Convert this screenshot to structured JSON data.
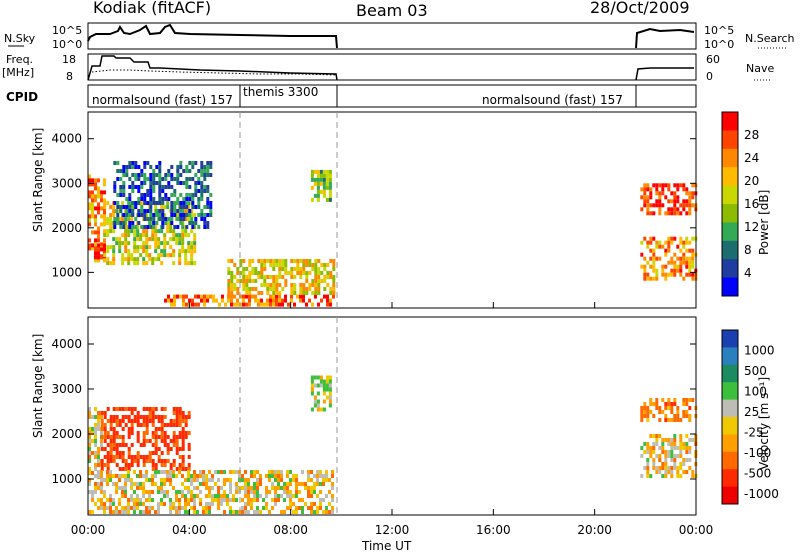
{
  "header": {
    "station": "Kodiak (fitACF)",
    "beam": "Beam 03",
    "date": "28/Oct/2009"
  },
  "small_panels": {
    "nsky_label": "N.Sky",
    "nsky_ticks": [
      "10^5",
      "10^0"
    ],
    "nsearch_label": "N.Search",
    "nsearch_ticks": [
      "10^5",
      "10^0"
    ],
    "freq_label_1": "Freq.",
    "freq_label_2": "[MHz]",
    "freq_ticks": [
      "18",
      "8"
    ],
    "nave_label": "Nave",
    "nave_ticks": [
      "60",
      "0"
    ],
    "cpid_label": "CPID",
    "cpid_segments": [
      {
        "name": "normalsound (fast) 157",
        "start_h": 0.0,
        "end_h": 6.0
      },
      {
        "name": "themis 3300",
        "start_h": 6.0,
        "end_h": 9.75
      },
      {
        "name": "normalsound (fast) 157",
        "start_h": 9.75,
        "end_h": 21.75
      }
    ]
  },
  "chart_data": [
    {
      "type": "heatmap",
      "panel": "power",
      "ylabel": "Slant Range [km]",
      "xlabel": "Time UT",
      "xlim": [
        0,
        24
      ],
      "ylim": [
        200,
        4600
      ],
      "x_ticks": [
        "00:00",
        "04:00",
        "08:00",
        "12:00",
        "16:00",
        "20:00",
        "00:00"
      ],
      "y_ticks": [
        1000,
        2000,
        3000,
        4000
      ],
      "colorbar_label": "Power [dB]",
      "colorbar_ticks": [
        "28",
        "24",
        "20",
        "16",
        "12",
        "8",
        "4"
      ],
      "colorbar_colors": [
        "#ff0000",
        "#ff4400",
        "#ff8800",
        "#ffbb00",
        "#c8d800",
        "#8cbb00",
        "#33aa55",
        "#1c6e6e",
        "#1f3ca0",
        "#0000ff"
      ],
      "data_gap": [
        9.75,
        21.75
      ],
      "features": [
        {
          "t_start": 0.0,
          "t_end": 0.6,
          "r_min": 1250,
          "r_max": 3200,
          "power_db": 22
        },
        {
          "t_start": 0.0,
          "t_end": 0.6,
          "r_min": 1350,
          "r_max": 1650,
          "power_db": 28
        },
        {
          "t_start": 0.6,
          "t_end": 4.2,
          "r_min": 1200,
          "r_max": 2600,
          "power_db": 16
        },
        {
          "t_start": 1.0,
          "t_end": 4.8,
          "r_min": 2000,
          "r_max": 3500,
          "power_db": 6
        },
        {
          "t_start": 3.0,
          "t_end": 9.7,
          "r_min": 250,
          "r_max": 500,
          "power_db": 24
        },
        {
          "t_start": 5.5,
          "t_end": 9.7,
          "r_min": 500,
          "r_max": 1300,
          "power_db": 18
        },
        {
          "t_start": 8.8,
          "t_end": 9.6,
          "r_min": 2600,
          "r_max": 3300,
          "power_db": 14
        },
        {
          "t_start": 21.8,
          "t_end": 24.0,
          "r_min": 2300,
          "r_max": 3000,
          "power_db": 27
        },
        {
          "t_start": 21.8,
          "t_end": 24.0,
          "r_min": 900,
          "r_max": 1800,
          "power_db": 22
        }
      ]
    },
    {
      "type": "heatmap",
      "panel": "velocity",
      "ylabel": "Slant Range [km]",
      "xlabel": "Time UT",
      "xlim": [
        0,
        24
      ],
      "ylim": [
        200,
        4600
      ],
      "x_ticks": [
        "00:00",
        "04:00",
        "08:00",
        "12:00",
        "16:00",
        "20:00",
        "00:00"
      ],
      "y_ticks": [
        1000,
        2000,
        3000,
        4000
      ],
      "colorbar_label": "Velocity [m s⁻¹]",
      "colorbar_ticks": [
        "1000",
        "500",
        "100",
        "25",
        "-25",
        "-100",
        "-500",
        "-1000"
      ],
      "colorbar_colors": [
        "#1b3fb0",
        "#2a7fbf",
        "#1c8c60",
        "#3cbf3c",
        "#bdbdb5",
        "#f0c800",
        "#ffa000",
        "#ff6a00",
        "#ff2a00",
        "#ee0000"
      ],
      "data_gap": [
        9.75,
        21.75
      ],
      "features": [
        {
          "t_start": 0.0,
          "t_end": 0.5,
          "r_min": 1000,
          "r_max": 2600,
          "velocity": 0
        },
        {
          "t_start": 0.5,
          "t_end": 4.0,
          "r_min": 1200,
          "r_max": 2600,
          "velocity": -300
        },
        {
          "t_start": 0.0,
          "t_end": 9.7,
          "r_min": 250,
          "r_max": 1200,
          "velocity": 0
        },
        {
          "t_start": 8.8,
          "t_end": 9.6,
          "r_min": 2500,
          "r_max": 3300,
          "velocity": 50
        },
        {
          "t_start": 21.8,
          "t_end": 24.0,
          "r_min": 2300,
          "r_max": 2800,
          "velocity": -150
        },
        {
          "t_start": 21.8,
          "t_end": 24.0,
          "r_min": 1100,
          "r_max": 2000,
          "velocity": 0
        }
      ]
    }
  ]
}
